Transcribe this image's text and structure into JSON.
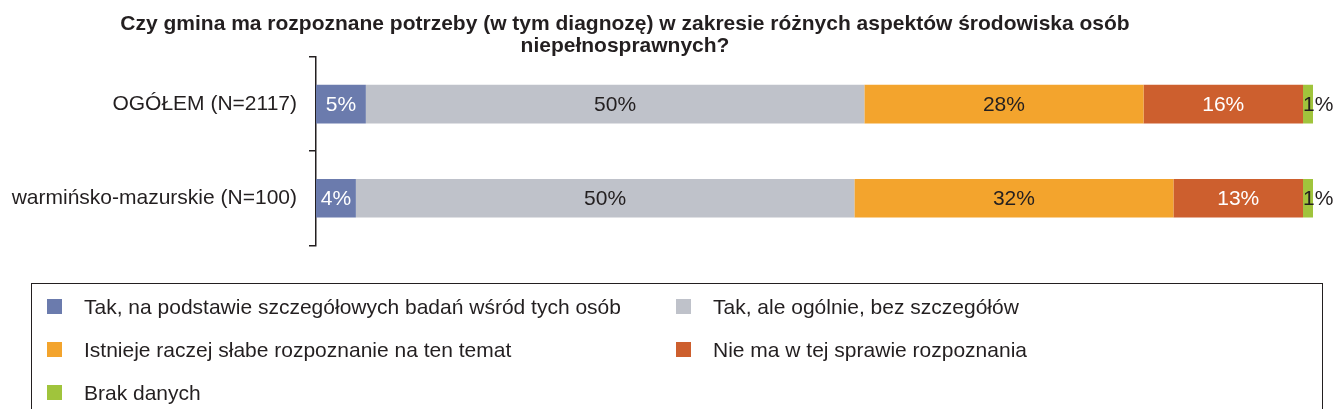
{
  "chart_data": {
    "type": "bar",
    "orientation": "horizontal",
    "stacked": true,
    "title": "Czy gmina ma rozpoznane potrzeby (w tym diagnozę) w zakresie różnych aspektów środowiska osób niepełnosprawnych?",
    "categories": [
      "OGÓŁEM (N=2117)",
      "warmińsko-mazurskie (N=100)"
    ],
    "xlim": [
      0,
      100
    ],
    "tick_labels": "y",
    "legend": "bottom",
    "series": [
      {
        "name": "Tak, na podstawie szczegółowych badań wśród tych osób",
        "color": "#6b7bad",
        "values": [
          5,
          4
        ],
        "value_labels": [
          "5%",
          "4%"
        ]
      },
      {
        "name": "Tak, ale ogólnie, bez szczegółów",
        "color": "#bfc2ca",
        "values": [
          50,
          50
        ],
        "value_labels": [
          "50%",
          "50%"
        ]
      },
      {
        "name": "Istnieje raczej słabe rozpoznanie na ten temat",
        "color": "#f3a42d",
        "values": [
          28,
          32
        ],
        "value_labels": [
          "28%",
          "32%"
        ]
      },
      {
        "name": "Nie ma w tej sprawie rozpoznania",
        "color": "#cd5f2e",
        "values": [
          16,
          13
        ],
        "value_labels": [
          "16%",
          "13%"
        ]
      },
      {
        "name": "Brak danych",
        "color": "#a0c43c",
        "values": [
          1,
          1
        ],
        "value_labels": [
          "1%",
          "1%"
        ]
      }
    ]
  }
}
